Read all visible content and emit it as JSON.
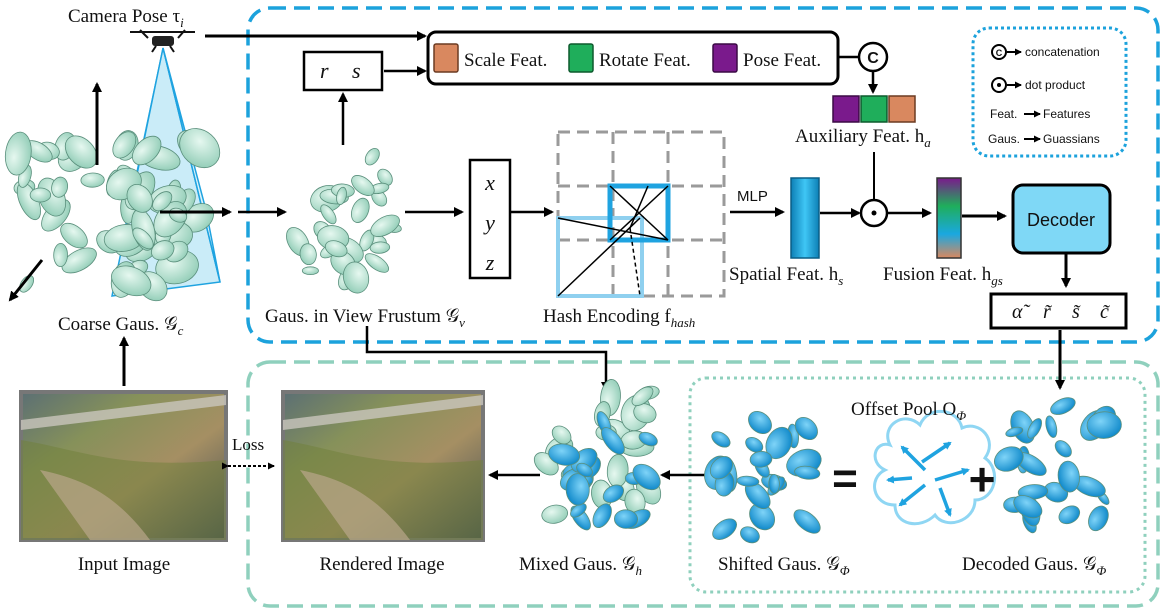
{
  "labels": {
    "camera_pose": "Camera Pose τ",
    "camera_pose_sub": "i",
    "r": "r",
    "s": "s",
    "scale_feat": "Scale Feat.",
    "rotate_feat": "Rotate Feat.",
    "pose_feat": "Pose Feat.",
    "concat_symbol": "C",
    "auxiliary_feat": "Auxiliary Feat. h",
    "auxiliary_sub": "a",
    "x": "x",
    "y": "y",
    "z": "z",
    "mlp": "MLP",
    "spatial_feat": "Spatial Feat. h",
    "spatial_sub": "s",
    "fusion_feat": "Fusion Feat. h",
    "fusion_sub": "gs",
    "decoder": "Decoder",
    "outputs": [
      "α̃",
      "r̃",
      "s̃",
      "c̃"
    ],
    "coarse_gaus": "Coarse Gaus. 𝒢",
    "coarse_sub": "c",
    "gaus_frustum": "Gaus. in View Frustum 𝒢",
    "frustum_sub": "v",
    "hash_encoding": "Hash Encoding f",
    "hash_sub": "hash",
    "offset_pool": "Offset Pool O",
    "offset_sub": "Φ",
    "input_image": "Input Image",
    "rendered_image": "Rendered Image",
    "mixed_gaus": "Mixed Gaus. 𝒢",
    "mixed_sub": "h",
    "shifted_gaus": "Shifted Gaus. 𝒢",
    "shifted_sub": "Φ",
    "decoded_gaus": "Decoded Gaus. 𝒢",
    "decoded_sub": "Φ",
    "loss": "Loss",
    "equals": "=",
    "plus": "+"
  },
  "legend": {
    "concat": "concatenation",
    "dot": "dot product",
    "feat_key": "Feat.",
    "feat_val": "Features",
    "gaus_key": "Gaus.",
    "gaus_val": "Guassians"
  },
  "colors": {
    "top_frame": "#1ca2dc",
    "bottom_frame": "#8fd0bd",
    "legend_frame": "#1ca2dc",
    "scale": "#d9885f",
    "rotate": "#1fae5b",
    "pose": "#7a1a8c",
    "spatial": "#1aa8e0",
    "decoder": "#7fd8f6",
    "gaus_green": "#b6e8d6",
    "gaus_blue": "#1fa3e0"
  }
}
